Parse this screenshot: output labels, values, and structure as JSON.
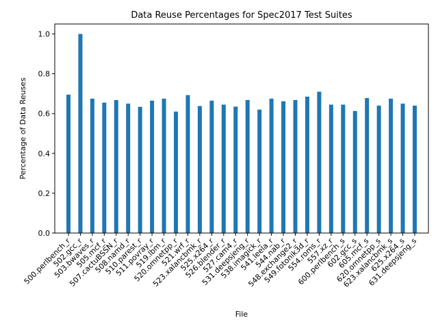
{
  "chart_data": {
    "type": "bar",
    "title": "Data Reuse Percentages for Spec2017 Test Suites",
    "xlabel": "File",
    "ylabel": "Percentage of Data Reuses",
    "ylim": [
      0,
      1.05
    ],
    "yticks": [
      "0.0",
      "0.2",
      "0.4",
      "0.6",
      "0.8",
      "1.0"
    ],
    "grid": false,
    "bar_color": "#1f77b4",
    "categories": [
      "500.perlbench_r",
      "502.gcc_r",
      "503.bwaves_r",
      "505.mcf_r",
      "507.cactuBSSN_r",
      "508.namd_r",
      "510.parest_r",
      "511.povray_r",
      "519.lbm_r",
      "520.omnetpp_r",
      "521.wrf_r",
      "523.xalancbmk_r",
      "525.x264_r",
      "526.blender_r",
      "527.cam4_r",
      "531.deepsjeng_r",
      "538.imagick_r",
      "541.leela_r",
      "544.nab_r",
      "548.exchange2_r",
      "549.fotonik3d_r",
      "554.roms_r",
      "557.xz_r",
      "600.perlbench_s",
      "602.gcc_s",
      "605.mcf_s",
      "620.omnetpp_s",
      "623.xalancbmk_s",
      "625.x264_s",
      "631.deepsjeng_s"
    ],
    "values": [
      0.695,
      1.0,
      0.675,
      0.655,
      0.668,
      0.65,
      0.634,
      0.665,
      0.675,
      0.61,
      0.693,
      0.638,
      0.665,
      0.645,
      0.635,
      0.668,
      0.62,
      0.675,
      0.662,
      0.668,
      0.685,
      0.71,
      0.645,
      0.645,
      0.613,
      0.678,
      0.64,
      0.675,
      0.65,
      0.64
    ]
  }
}
